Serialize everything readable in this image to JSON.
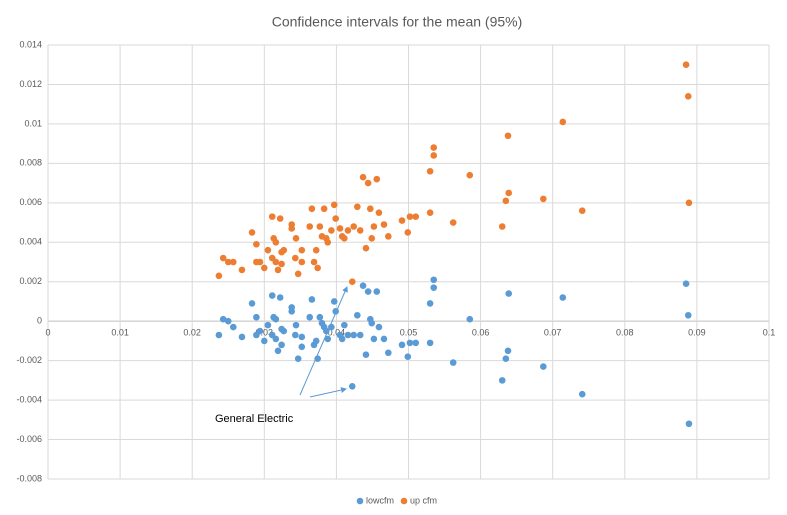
{
  "chart_data": {
    "type": "scatter",
    "title": "Confidence intervals for the mean (95%)",
    "annotation": "General Electric",
    "xlim": [
      0,
      0.1
    ],
    "xticks": [
      0,
      0.01,
      0.02,
      0.03,
      0.04,
      0.05,
      0.06,
      0.07,
      0.08,
      0.09,
      0.1
    ],
    "ylim": [
      -0.008,
      0.014
    ],
    "yticks": [
      -0.008,
      -0.006,
      -0.004,
      -0.002,
      0,
      0.002,
      0.004,
      0.006,
      0.008,
      0.01,
      0.012,
      0.014
    ],
    "grid": true,
    "legend": "bottom",
    "x": [
      0.0237,
      0.0243,
      0.025,
      0.0257,
      0.0269,
      0.0283,
      0.0289,
      0.0289,
      0.0294,
      0.03,
      0.0305,
      0.0311,
      0.0313,
      0.0316,
      0.0311,
      0.0316,
      0.0319,
      0.0322,
      0.0324,
      0.0327,
      0.0324,
      0.0338,
      0.0338,
      0.0343,
      0.0344,
      0.0347,
      0.0352,
      0.0352,
      0.0363,
      0.0366,
      0.0369,
      0.0372,
      0.0374,
      0.0377,
      0.038,
      0.0383,
      0.0386,
      0.0388,
      0.0393,
      0.0397,
      0.0399,
      0.0405,
      0.0408,
      0.0411,
      0.0416,
      0.0422,
      0.0424,
      0.0429,
      0.0433,
      0.0437,
      0.0441,
      0.0444,
      0.0447,
      0.0449,
      0.0452,
      0.0456,
      0.0459,
      0.0466,
      0.0472,
      0.0491,
      0.0499,
      0.0502,
      0.051,
      0.053,
      0.053,
      0.0535,
      0.0535,
      0.0562,
      0.0585,
      0.063,
      0.0635,
      0.0639,
      0.0638,
      0.0687,
      0.0714,
      0.0741,
      0.0885,
      0.0888,
      0.0889
    ],
    "series": [
      {
        "name": "lowcfm",
        "color": "#5b9bd5",
        "values": [
          -0.0007,
          0.0001,
          0.0,
          -0.0003,
          -0.0008,
          0.0009,
          -0.0007,
          0.0002,
          -0.0005,
          -0.001,
          -0.0002,
          0.0013,
          0.0002,
          0.0001,
          -0.0007,
          -0.0009,
          -0.0015,
          0.0012,
          -0.0004,
          -0.0005,
          -0.0012,
          0.0005,
          0.0007,
          -0.0007,
          -0.0002,
          -0.0019,
          -0.0008,
          -0.0013,
          0.0002,
          0.0011,
          -0.0012,
          -0.001,
          -0.0019,
          0.0002,
          -0.0001,
          -0.0003,
          -0.0005,
          -0.0009,
          -0.0003,
          0.001,
          0.0005,
          -0.0007,
          -0.0009,
          -0.0002,
          -0.0007,
          -0.0033,
          -0.0007,
          0.0003,
          -0.0007,
          0.0018,
          -0.0017,
          0.0015,
          0.0001,
          -0.0001,
          -0.0009,
          0.0015,
          -0.0003,
          -0.0009,
          -0.0016,
          -0.0012,
          -0.0018,
          -0.0011,
          -0.0011,
          0.0009,
          -0.0011,
          0.0021,
          0.0017,
          -0.0021,
          0.0001,
          -0.003,
          -0.0019,
          0.0014,
          -0.0015,
          -0.0023,
          0.0012,
          -0.0037,
          0.0019,
          0.0003,
          -0.0052
        ]
      },
      {
        "name": "up cfm",
        "color": "#ed7d31",
        "values": [
          0.0023,
          0.0032,
          0.003,
          0.003,
          0.0026,
          0.0045,
          0.0039,
          0.003,
          0.003,
          0.0027,
          0.0036,
          0.0053,
          0.0042,
          0.004,
          0.0032,
          0.003,
          0.0026,
          0.0052,
          0.0035,
          0.0036,
          0.0029,
          0.0047,
          0.0049,
          0.0032,
          0.0042,
          0.0024,
          0.0036,
          0.003,
          0.0048,
          0.0057,
          0.003,
          0.0036,
          0.0027,
          0.0048,
          0.0043,
          0.0057,
          0.0042,
          0.004,
          0.0046,
          0.0059,
          0.0052,
          0.0047,
          0.0043,
          0.0042,
          0.0046,
          0.002,
          0.0048,
          0.0058,
          0.0046,
          0.0073,
          0.0037,
          0.007,
          0.0057,
          0.0042,
          0.0048,
          0.0072,
          0.0055,
          0.0049,
          0.0043,
          0.0051,
          0.0045,
          0.0053,
          0.0053,
          0.0055,
          0.0076,
          0.0088,
          0.0084,
          0.005,
          0.0074,
          0.0048,
          0.0061,
          0.0065,
          0.0094,
          0.0062,
          0.0101,
          0.0056,
          0.013,
          0.0114,
          0.006
        ]
      }
    ]
  }
}
